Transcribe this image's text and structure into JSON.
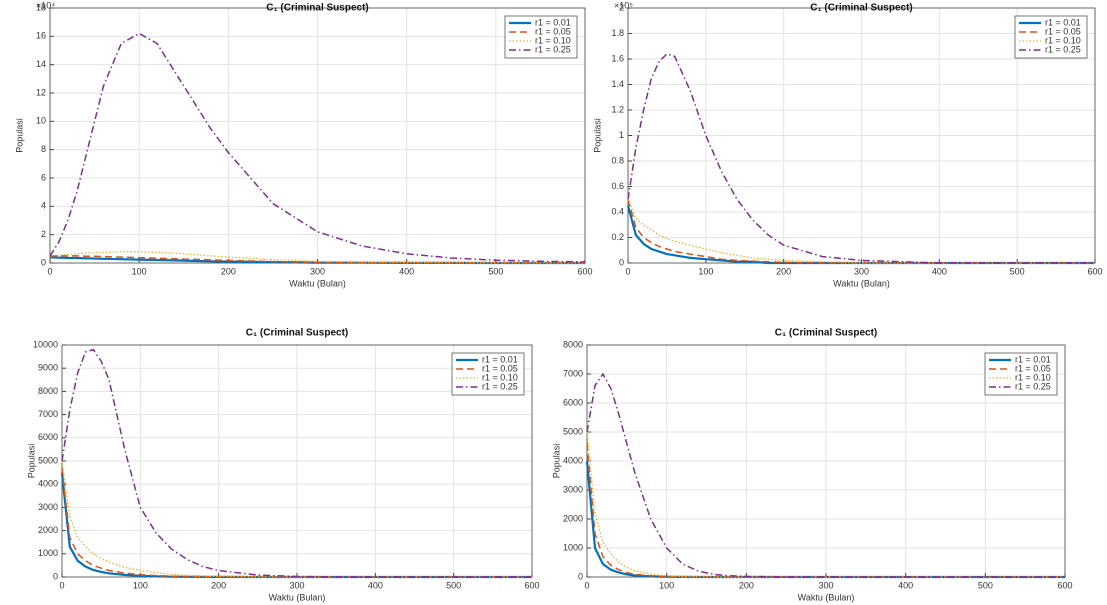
{
  "chart_data": [
    {
      "type": "line",
      "title": "C₁ (Criminal Suspect)",
      "xlabel": "Waktu (Bulan)",
      "ylabel": "Populasi",
      "y_multiplier": "×10⁴",
      "x": [
        0,
        10,
        20,
        30,
        40,
        50,
        60,
        80,
        100,
        120,
        140,
        160,
        180,
        200,
        250,
        300,
        350,
        400,
        450,
        500,
        550,
        600
      ],
      "series": [
        {
          "name": "r1 = 0.01",
          "color": "#0072bd",
          "style": "solid",
          "values": [
            0.4,
            0.38,
            0.36,
            0.35,
            0.33,
            0.32,
            0.3,
            0.27,
            0.24,
            0.21,
            0.18,
            0.15,
            0.12,
            0.1,
            0.06,
            0.03,
            0.02,
            0.01,
            0.01,
            0,
            0,
            0
          ]
        },
        {
          "name": "r1 = 0.05",
          "color": "#d95319",
          "style": "dashed",
          "values": [
            0.5,
            0.5,
            0.5,
            0.5,
            0.48,
            0.47,
            0.45,
            0.42,
            0.38,
            0.34,
            0.3,
            0.26,
            0.22,
            0.18,
            0.1,
            0.05,
            0.03,
            0.02,
            0.01,
            0.01,
            0,
            0
          ]
        },
        {
          "name": "r1 = 0.10",
          "color": "#edb120",
          "style": "dotted",
          "values": [
            0.5,
            0.55,
            0.6,
            0.65,
            0.7,
            0.72,
            0.75,
            0.8,
            0.8,
            0.75,
            0.7,
            0.6,
            0.5,
            0.42,
            0.25,
            0.12,
            0.06,
            0.03,
            0.02,
            0.01,
            0.01,
            0
          ]
        },
        {
          "name": "r1 = 0.25",
          "color": "#7e2f8e",
          "style": "dashdot",
          "values": [
            0.5,
            1.5,
            3,
            5,
            7.5,
            10,
            12.5,
            15.5,
            16.2,
            15.5,
            13.5,
            11.5,
            9.5,
            7.8,
            4.2,
            2.2,
            1.2,
            0.65,
            0.35,
            0.2,
            0.12,
            0.08
          ]
        }
      ],
      "xlim": [
        0,
        600
      ],
      "xticks": [
        0,
        100,
        200,
        300,
        400,
        500,
        600
      ],
      "ylim": [
        0,
        18
      ],
      "yticks": [
        0,
        2,
        4,
        6,
        8,
        10,
        12,
        14,
        16,
        18
      ],
      "grid": true,
      "legend": "northeast"
    },
    {
      "type": "line",
      "title": "C₁ (Criminal Suspect)",
      "xlabel": "Waktu (Bulan)",
      "ylabel": "Populasi",
      "y_multiplier": "×10⁵",
      "x": [
        0,
        10,
        20,
        30,
        40,
        50,
        60,
        80,
        100,
        120,
        140,
        160,
        180,
        200,
        250,
        300,
        350,
        400,
        450,
        500,
        550,
        600
      ],
      "series": [
        {
          "name": "r1 = 0.01",
          "color": "#0072bd",
          "style": "solid",
          "values": [
            0.45,
            0.22,
            0.15,
            0.11,
            0.09,
            0.07,
            0.06,
            0.04,
            0.03,
            0.02,
            0.01,
            0.01,
            0,
            0,
            0,
            0,
            0,
            0,
            0,
            0,
            0,
            0
          ]
        },
        {
          "name": "r1 = 0.05",
          "color": "#d95319",
          "style": "dashed",
          "values": [
            0.5,
            0.28,
            0.2,
            0.16,
            0.13,
            0.11,
            0.09,
            0.07,
            0.05,
            0.03,
            0.02,
            0.015,
            0.01,
            0.005,
            0,
            0,
            0,
            0,
            0,
            0,
            0,
            0
          ]
        },
        {
          "name": "r1 = 0.10",
          "color": "#edb120",
          "style": "dotted",
          "values": [
            0.5,
            0.35,
            0.3,
            0.26,
            0.22,
            0.19,
            0.17,
            0.14,
            0.11,
            0.08,
            0.06,
            0.04,
            0.03,
            0.02,
            0.01,
            0,
            0,
            0,
            0,
            0,
            0,
            0
          ]
        },
        {
          "name": "r1 = 0.25",
          "color": "#7e2f8e",
          "style": "dashdot",
          "values": [
            0.5,
            0.9,
            1.2,
            1.45,
            1.58,
            1.64,
            1.62,
            1.35,
            1.0,
            0.72,
            0.5,
            0.34,
            0.22,
            0.14,
            0.05,
            0.02,
            0.01,
            0,
            0,
            0,
            0,
            0
          ]
        }
      ],
      "xlim": [
        0,
        600
      ],
      "xticks": [
        0,
        100,
        200,
        300,
        400,
        500,
        600
      ],
      "ylim": [
        0,
        2
      ],
      "yticks": [
        0,
        0.2,
        0.4,
        0.6,
        0.8,
        1,
        1.2,
        1.4,
        1.6,
        1.8,
        2
      ],
      "grid": true,
      "legend": "northeast"
    },
    {
      "type": "line",
      "title": "C₁ (Criminal Suspect)",
      "xlabel": "Waktu (Bulan)",
      "ylabel": "Populasi",
      "x": [
        0,
        10,
        20,
        30,
        40,
        50,
        60,
        80,
        100,
        120,
        140,
        160,
        180,
        200,
        250,
        300,
        350,
        400,
        450,
        500,
        550,
        600
      ],
      "series": [
        {
          "name": "r1 = 0.01",
          "color": "#0072bd",
          "style": "solid",
          "values": [
            4500,
            1300,
            700,
            450,
            300,
            220,
            160,
            90,
            50,
            30,
            15,
            10,
            5,
            3,
            0,
            0,
            0,
            0,
            0,
            0,
            0,
            0
          ]
        },
        {
          "name": "r1 = 0.05",
          "color": "#d95319",
          "style": "dashed",
          "values": [
            4700,
            1700,
            1000,
            700,
            500,
            380,
            280,
            170,
            100,
            60,
            35,
            20,
            12,
            8,
            2,
            0,
            0,
            0,
            0,
            0,
            0,
            0
          ]
        },
        {
          "name": "r1 = 0.10",
          "color": "#edb120",
          "style": "dotted",
          "values": [
            5000,
            2600,
            1700,
            1300,
            1000,
            800,
            650,
            420,
            280,
            180,
            110,
            70,
            45,
            30,
            10,
            0,
            0,
            0,
            0,
            0,
            0,
            0
          ]
        },
        {
          "name": "r1 = 0.25",
          "color": "#7e2f8e",
          "style": "dashdot",
          "values": [
            5000,
            7200,
            8800,
            9700,
            9800,
            9300,
            8500,
            5500,
            3000,
            1900,
            1200,
            750,
            450,
            280,
            80,
            20,
            5,
            0,
            0,
            0,
            0,
            0
          ]
        }
      ],
      "xlim": [
        0,
        600
      ],
      "xticks": [
        0,
        100,
        200,
        300,
        400,
        500,
        600
      ],
      "ylim": [
        0,
        10000
      ],
      "yticks": [
        0,
        1000,
        2000,
        3000,
        4000,
        5000,
        6000,
        7000,
        8000,
        9000,
        10000
      ],
      "grid": true,
      "legend": "northeast"
    },
    {
      "type": "line",
      "title": "C₁ (Criminal Suspect)",
      "xlabel": "Waktu (Bulan)",
      "ylabel": "Populasi",
      "x": [
        0,
        10,
        20,
        30,
        40,
        50,
        60,
        80,
        100,
        120,
        140,
        160,
        180,
        200,
        250,
        300,
        350,
        400,
        450,
        500,
        550,
        600
      ],
      "series": [
        {
          "name": "r1 = 0.01",
          "color": "#0072bd",
          "style": "solid",
          "values": [
            4000,
            1000,
            450,
            250,
            150,
            90,
            50,
            20,
            8,
            3,
            0,
            0,
            0,
            0,
            0,
            0,
            0,
            0,
            0,
            0,
            0,
            0
          ]
        },
        {
          "name": "r1 = 0.05",
          "color": "#d95319",
          "style": "dashed",
          "values": [
            4600,
            1500,
            700,
            400,
            250,
            150,
            90,
            40,
            15,
            5,
            2,
            0,
            0,
            0,
            0,
            0,
            0,
            0,
            0,
            0,
            0,
            0
          ]
        },
        {
          "name": "r1 = 0.10",
          "color": "#edb120",
          "style": "dotted",
          "values": [
            5000,
            2200,
            1200,
            800,
            500,
            330,
            220,
            100,
            40,
            15,
            5,
            2,
            0,
            0,
            0,
            0,
            0,
            0,
            0,
            0,
            0,
            0
          ]
        },
        {
          "name": "r1 = 0.25",
          "color": "#7e2f8e",
          "style": "dashdot",
          "values": [
            5000,
            6600,
            7000,
            6500,
            5600,
            4600,
            3600,
            2000,
            1000,
            450,
            200,
            90,
            40,
            20,
            5,
            0,
            0,
            0,
            0,
            0,
            0,
            0
          ]
        }
      ],
      "xlim": [
        0,
        600
      ],
      "xticks": [
        0,
        100,
        200,
        300,
        400,
        500,
        600
      ],
      "ylim": [
        0,
        8000
      ],
      "yticks": [
        0,
        1000,
        2000,
        3000,
        4000,
        5000,
        6000,
        7000,
        8000
      ],
      "grid": true,
      "legend": "northeast"
    }
  ]
}
